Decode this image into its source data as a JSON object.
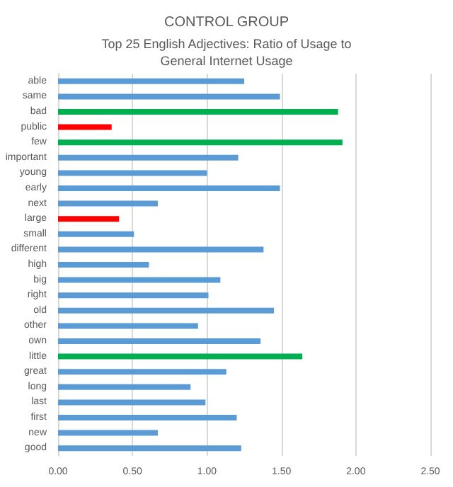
{
  "chart_data": {
    "type": "bar",
    "orientation": "horizontal",
    "title": "CONTROL GROUP",
    "subtitle": "Top 25 English Adjectives: Ratio of Usage to\nGeneral Internet Usage",
    "categories": [
      "able",
      "same",
      "bad",
      "public",
      "few",
      "important",
      "young",
      "early",
      "next",
      "large",
      "small",
      "different",
      "high",
      "big",
      "right",
      "old",
      "other",
      "own",
      "little",
      "great",
      "long",
      "last",
      "first",
      "new",
      "good"
    ],
    "values": [
      1.25,
      1.49,
      1.88,
      0.36,
      1.91,
      1.21,
      1.0,
      1.49,
      0.67,
      0.41,
      0.51,
      1.38,
      0.61,
      1.09,
      1.01,
      1.45,
      0.94,
      1.36,
      1.64,
      1.13,
      0.89,
      0.99,
      1.2,
      0.67,
      1.23
    ],
    "colors": [
      "#5b9bd5",
      "#5b9bd5",
      "#00b050",
      "#ff0000",
      "#00b050",
      "#5b9bd5",
      "#5b9bd5",
      "#5b9bd5",
      "#5b9bd5",
      "#ff0000",
      "#5b9bd5",
      "#5b9bd5",
      "#5b9bd5",
      "#5b9bd5",
      "#5b9bd5",
      "#5b9bd5",
      "#5b9bd5",
      "#5b9bd5",
      "#00b050",
      "#5b9bd5",
      "#5b9bd5",
      "#5b9bd5",
      "#5b9bd5",
      "#5b9bd5",
      "#5b9bd5"
    ],
    "xlim": [
      0,
      2.5
    ],
    "xticks": [
      {
        "value": 0,
        "label": "0.00"
      },
      {
        "value": 0.5,
        "label": "0.50"
      },
      {
        "value": 1,
        "label": "1.00"
      },
      {
        "value": 1.5,
        "label": "1.50"
      },
      {
        "value": 2,
        "label": "2.00"
      },
      {
        "value": 2.5,
        "label": "2.50"
      }
    ],
    "grid": "x"
  }
}
